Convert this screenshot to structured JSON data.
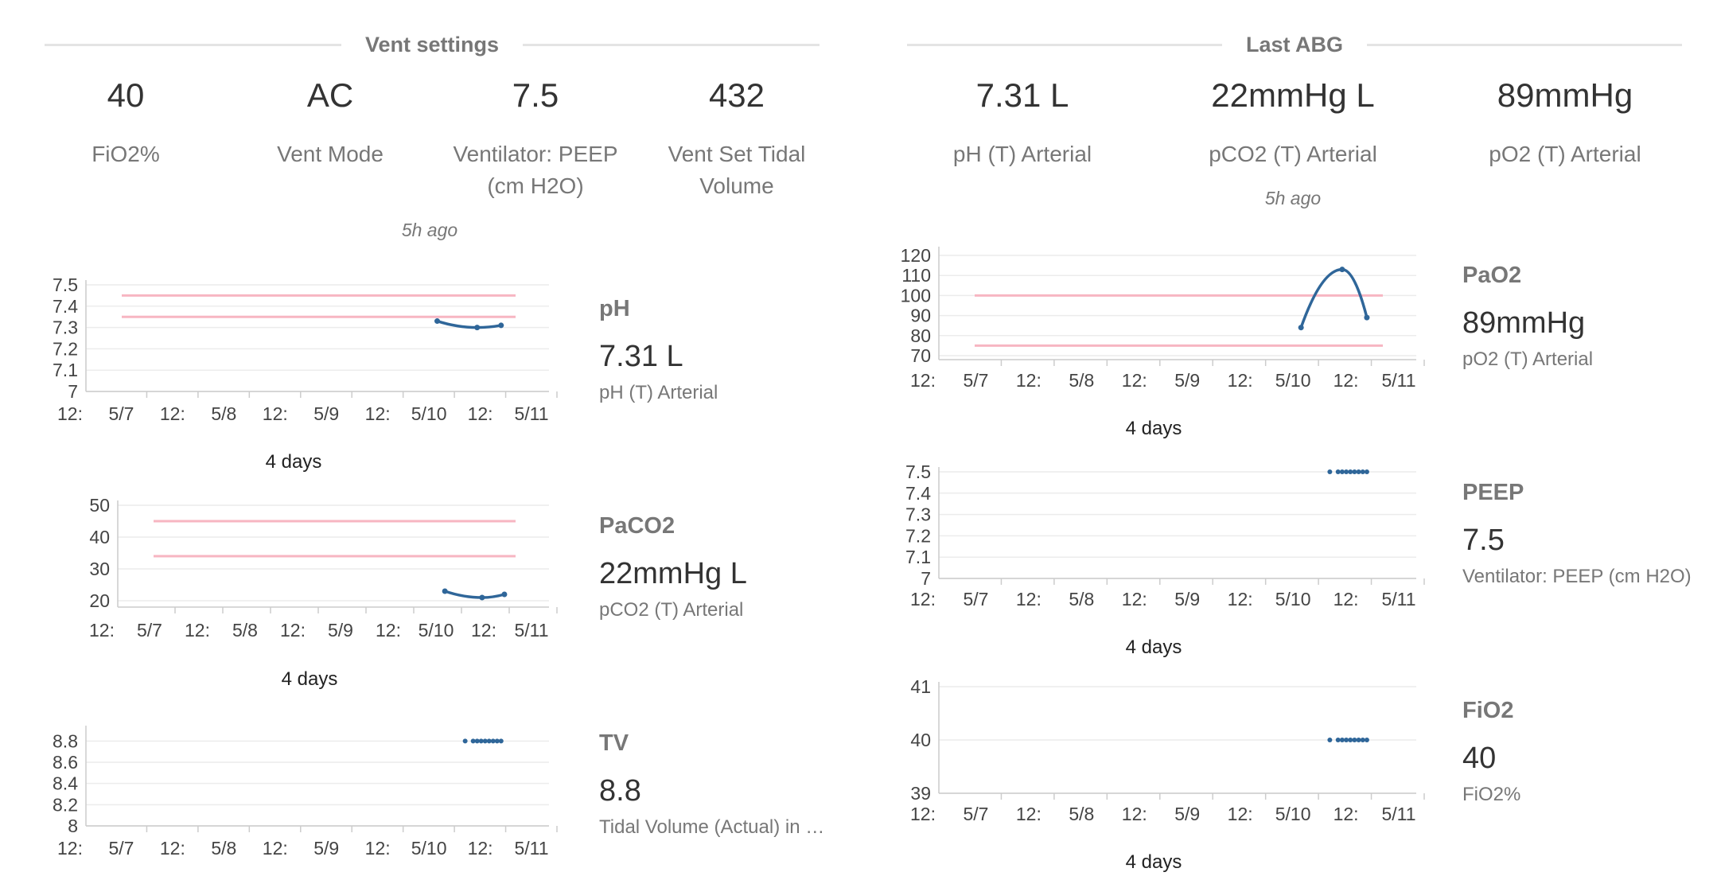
{
  "vent": {
    "title": "Vent settings",
    "stats": [
      {
        "value": "40",
        "label": "FiO2%"
      },
      {
        "value": "AC",
        "label": "Vent Mode"
      },
      {
        "value": "7.5",
        "label": "Ventilator: PEEP (cm H2O)"
      },
      {
        "value": "432",
        "label": "Vent Set Tidal Volume"
      }
    ],
    "ago": "5h ago"
  },
  "abg": {
    "title": "Last ABG",
    "stats": [
      {
        "value": "7.31 L",
        "label": "pH (T) Arterial"
      },
      {
        "value": "22mmHg L",
        "label": "pCO2 (T) Arterial"
      },
      {
        "value": "89mmHg",
        "label": "pO2 (T) Arterial"
      }
    ],
    "ago": "5h ago"
  },
  "panels": [
    {
      "name": "pH",
      "value": "7.31 L",
      "desc": "pH (T) Arterial"
    },
    {
      "name": "PaCO2",
      "value": "22mmHg L",
      "desc": "pCO2 (T) Arterial"
    },
    {
      "name": "TV",
      "value": "8.8",
      "desc": "Tidal Volume (Actual) in …"
    },
    {
      "name": "PaO2",
      "value": "89mmHg",
      "desc": "pO2 (T) Arterial"
    },
    {
      "name": "PEEP",
      "value": "7.5",
      "desc": "Ventilator: PEEP (cm H2O)"
    },
    {
      "name": "FiO2",
      "value": "40",
      "desc": "FiO2%"
    }
  ],
  "chart_data": [
    {
      "type": "line",
      "x_tick_labels": [
        "12:",
        "5/7",
        "12:",
        "5/8",
        "12:",
        "5/9",
        "12:",
        "5/10",
        "12:",
        "5/11"
      ],
      "xlabel": "4 days",
      "y_ticks": [
        "7",
        "7.1",
        "7.2",
        "7.3",
        "7.4",
        "7.5"
      ],
      "ylim": [
        7,
        7.5
      ],
      "reference_lines": [
        7.35,
        7.45
      ],
      "series": [
        {
          "x": [
            "5/10 00:00",
            "5/10 10:00",
            "5/10 16:00"
          ],
          "y": [
            7.33,
            7.3,
            7.31
          ]
        }
      ],
      "colors": {
        "line": "#2f6699",
        "reference": "#f7b6c2"
      }
    },
    {
      "type": "line",
      "x_tick_labels": [
        "12:",
        "5/7",
        "12:",
        "5/8",
        "12:",
        "5/9",
        "12:",
        "5/10",
        "12:",
        "5/11"
      ],
      "xlabel": "4 days",
      "y_ticks": [
        "20",
        "30",
        "40",
        "50"
      ],
      "ylim": [
        18,
        50
      ],
      "reference_lines": [
        34,
        45
      ],
      "series": [
        {
          "x": [
            "5/10 00:00",
            "5/10 10:00",
            "5/10 16:00"
          ],
          "y": [
            23,
            21,
            22
          ]
        }
      ],
      "colors": {
        "line": "#2f6699",
        "reference": "#f7b6c2"
      }
    },
    {
      "type": "scatter",
      "x_tick_labels": [
        "12:",
        "5/7",
        "12:",
        "5/8",
        "12:",
        "5/9",
        "12:",
        "5/10",
        "12:",
        "5/11"
      ],
      "xlabel": "",
      "y_ticks": [
        "8",
        "8.2",
        "8.4",
        "8.6",
        "8.8"
      ],
      "ylim": [
        8,
        8.9
      ],
      "reference_lines": [],
      "series": [
        {
          "x": [
            "5/10 07:00",
            "5/10 09:00",
            "5/10 10:00",
            "5/10 11:00",
            "5/10 12:00",
            "5/10 13:00",
            "5/10 14:00",
            "5/10 15:00",
            "5/10 16:00"
          ],
          "y": [
            8.8,
            8.8,
            8.8,
            8.8,
            8.8,
            8.8,
            8.8,
            8.8,
            8.8
          ]
        }
      ],
      "colors": {
        "line": "#2f6699",
        "reference": "#f7b6c2"
      }
    },
    {
      "type": "line",
      "x_tick_labels": [
        "12:",
        "5/7",
        "12:",
        "5/8",
        "12:",
        "5/9",
        "12:",
        "5/10",
        "12:",
        "5/11"
      ],
      "xlabel": "4 days",
      "y_ticks": [
        "70",
        "80",
        "90",
        "100",
        "110",
        "120"
      ],
      "ylim": [
        68,
        122
      ],
      "reference_lines": [
        75,
        100
      ],
      "series": [
        {
          "x": [
            "5/10 00:00",
            "5/10 10:00",
            "5/10 16:00"
          ],
          "y": [
            84,
            113,
            89
          ]
        }
      ],
      "colors": {
        "line": "#2f6699",
        "reference": "#f7b6c2"
      }
    },
    {
      "type": "scatter",
      "x_tick_labels": [
        "12:",
        "5/7",
        "12:",
        "5/8",
        "12:",
        "5/9",
        "12:",
        "5/10",
        "12:",
        "5/11"
      ],
      "xlabel": "4 days",
      "y_ticks": [
        "7",
        "7.1",
        "7.2",
        "7.3",
        "7.4",
        "7.5"
      ],
      "ylim": [
        7,
        7.5
      ],
      "reference_lines": [],
      "series": [
        {
          "x": [
            "5/10 07:00",
            "5/10 09:00",
            "5/10 10:00",
            "5/10 11:00",
            "5/10 12:00",
            "5/10 13:00",
            "5/10 14:00",
            "5/10 15:00",
            "5/10 16:00"
          ],
          "y": [
            7.5,
            7.5,
            7.5,
            7.5,
            7.5,
            7.5,
            7.5,
            7.5,
            7.5
          ]
        }
      ],
      "colors": {
        "line": "#2f6699",
        "reference": "#f7b6c2"
      }
    },
    {
      "type": "scatter",
      "x_tick_labels": [
        "12:",
        "5/7",
        "12:",
        "5/8",
        "12:",
        "5/9",
        "12:",
        "5/10",
        "12:",
        "5/11"
      ],
      "xlabel": "4 days",
      "y_ticks": [
        "39",
        "40",
        "41"
      ],
      "ylim": [
        39,
        41
      ],
      "reference_lines": [],
      "series": [
        {
          "x": [
            "5/10 07:00",
            "5/10 09:00",
            "5/10 10:00",
            "5/10 11:00",
            "5/10 12:00",
            "5/10 13:00",
            "5/10 14:00",
            "5/10 15:00",
            "5/10 16:00"
          ],
          "y": [
            40,
            40,
            40,
            40,
            40,
            40,
            40,
            40,
            40
          ]
        }
      ],
      "colors": {
        "line": "#2f6699",
        "reference": "#f7b6c2"
      }
    }
  ]
}
